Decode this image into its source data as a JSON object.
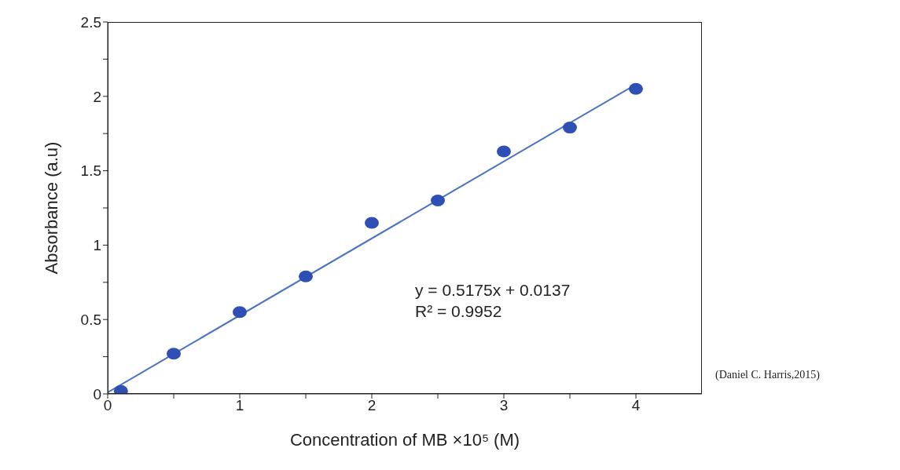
{
  "chart_data": {
    "type": "scatter",
    "xlabel": "Concentration of MB ×10⁵ (M)",
    "ylabel": "Absorbance (a.u)",
    "x": [
      0.1,
      0.5,
      1,
      1.5,
      2,
      2.5,
      3,
      3.5,
      4
    ],
    "series": [
      {
        "color": "#2f4fb5",
        "marker": "circle",
        "values": [
          0.02,
          0.27,
          0.55,
          0.79,
          1.15,
          1.3,
          1.63,
          1.79,
          2.05
        ]
      },
      {
        "type": "line",
        "color": "#4a72c4",
        "x": [
          0,
          4
        ],
        "values": [
          0.01,
          2.08
        ]
      }
    ],
    "xlim": [
      0,
      4.5
    ],
    "xticks": [
      0,
      {
        "value": 0.5,
        "label": null
      },
      1,
      {
        "value": 1.5,
        "label": null
      },
      2,
      {
        "value": 2.5,
        "label": null
      },
      3,
      {
        "value": 3.5,
        "label": null
      },
      4
    ],
    "ylim": [
      0,
      2.5
    ],
    "yticks": [
      0,
      {
        "value": 0.25,
        "label": null
      },
      0.5,
      {
        "value": 0.75,
        "label": null
      },
      1,
      {
        "value": 1.25,
        "label": null
      },
      1.5,
      {
        "value": 1.75,
        "label": null
      },
      2,
      {
        "value": 2.25,
        "label": null
      },
      2.5
    ],
    "annotations": [
      "y = 0.5175x + 0.0137",
      "R² = 0.9952",
      "(Daniel C. Harris,2015)"
    ],
    "grid": false,
    "legend": false
  }
}
